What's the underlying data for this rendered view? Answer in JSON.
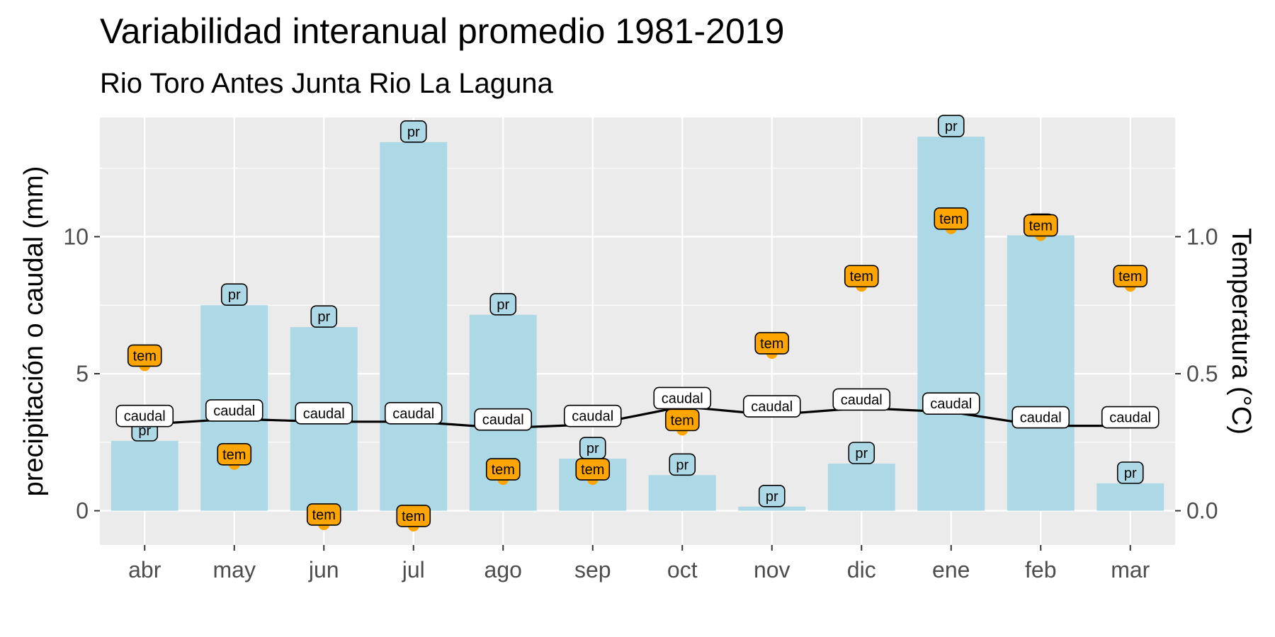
{
  "chart_data": {
    "type": "bar",
    "title": "Variabilidad interanual promedio 1981-2019",
    "subtitle": "Rio Toro Antes Junta Rio La Laguna",
    "ylabel": "precipitación o caudal (mm)",
    "y2label": "Temperatura (°C)",
    "categories": [
      "abr",
      "may",
      "jun",
      "jul",
      "ago",
      "sep",
      "oct",
      "nov",
      "dic",
      "ene",
      "feb",
      "mar"
    ],
    "ylim": [
      -1.25,
      14.35
    ],
    "y_ticks": [
      0,
      5,
      10
    ],
    "y2lim": [
      -0.125,
      1.435
    ],
    "y2_ticks": [
      0.0,
      0.5,
      1.0
    ],
    "y2_tick_labels": [
      "0.0",
      "0.5",
      "1.0"
    ],
    "grid": true,
    "series": [
      {
        "name": "pr",
        "type": "bar",
        "axis": "left",
        "color": "#add8e6",
        "label_fill": "#add8e6",
        "values": [
          2.55,
          7.5,
          6.7,
          13.45,
          7.15,
          1.9,
          1.3,
          0.15,
          1.72,
          13.65,
          10.05,
          1.0
        ]
      },
      {
        "name": "caudal",
        "type": "line",
        "axis": "left",
        "color": "#000000",
        "label_fill": "#ffffff",
        "values": [
          3.15,
          3.35,
          3.25,
          3.25,
          3.02,
          3.15,
          3.8,
          3.5,
          3.75,
          3.6,
          3.1,
          3.1
        ]
      },
      {
        "name": "tem",
        "type": "point",
        "axis": "right",
        "color": "#ffa500",
        "label_fill": "#ffa500",
        "values": [
          0.53,
          0.17,
          -0.05,
          -0.055,
          0.115,
          0.115,
          0.295,
          0.575,
          0.82,
          1.03,
          1.005,
          0.82
        ]
      }
    ]
  }
}
